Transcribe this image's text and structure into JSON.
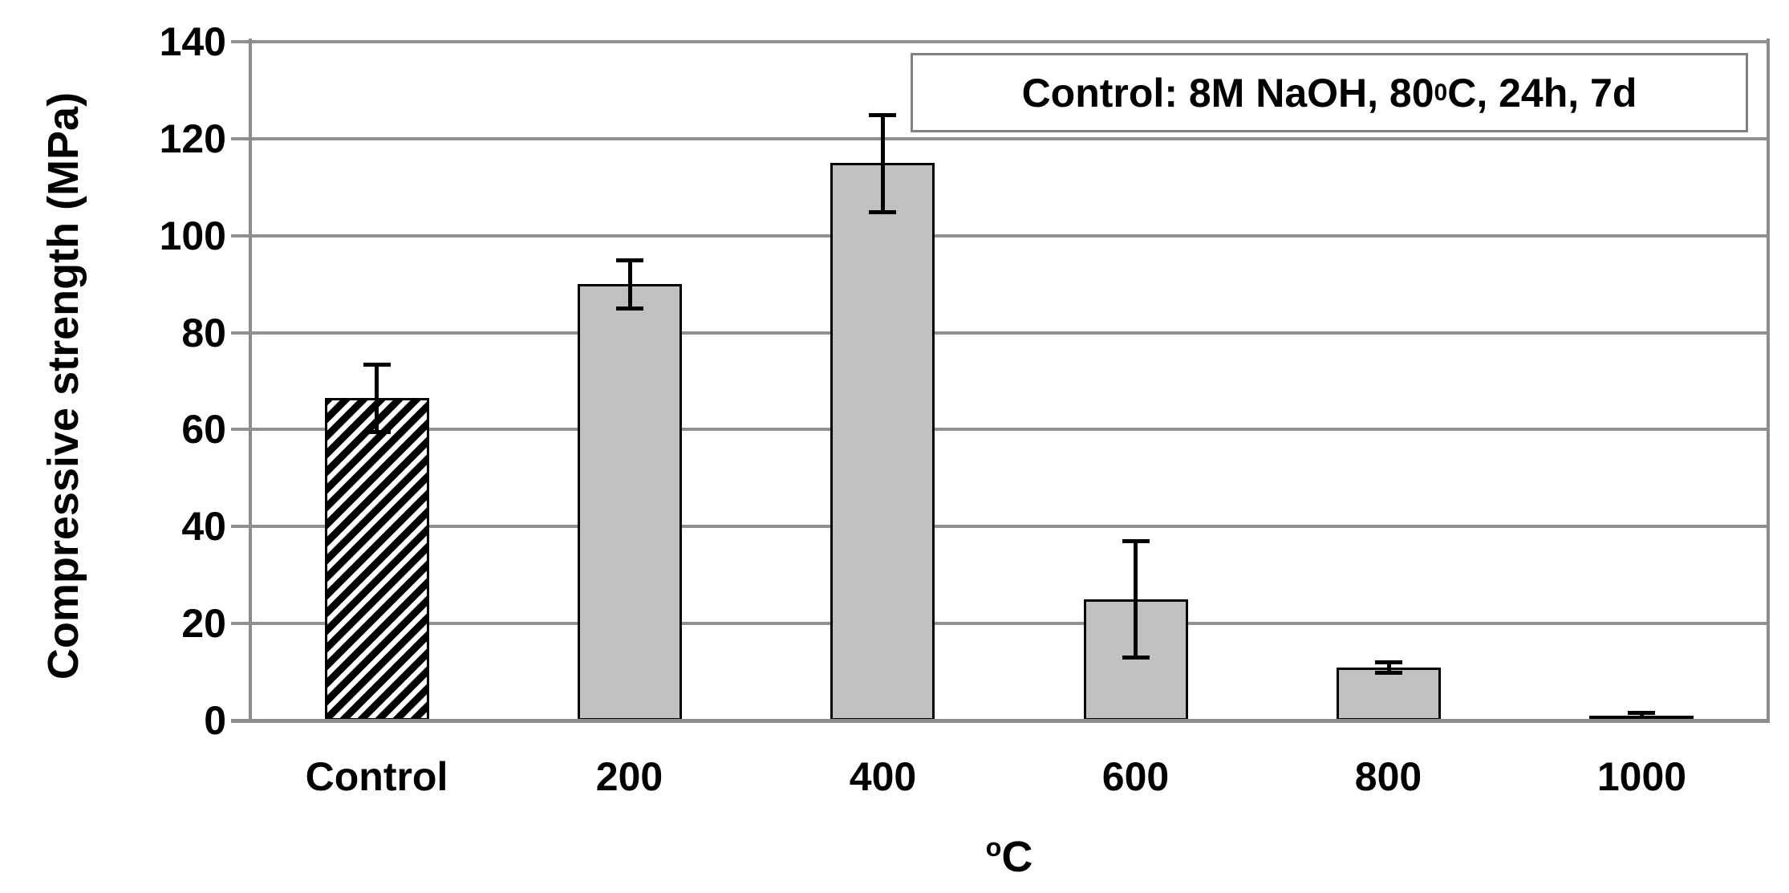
{
  "chart_data": {
    "type": "bar",
    "title": "",
    "categories": [
      "Control",
      "200",
      "400",
      "600",
      "800",
      "1000"
    ],
    "values": [
      66.5,
      90,
      115,
      25,
      11,
      1
    ],
    "error_bars": [
      7,
      5,
      10,
      12,
      1,
      0.7
    ],
    "bar_styles": [
      "diagonal-hatch",
      "solid",
      "solid",
      "solid",
      "solid",
      "solid"
    ],
    "ylabel": "Compressive strength (MPa)",
    "xlabel_sup": "o",
    "xlabel_main": "C",
    "ylim": [
      0,
      140
    ],
    "yticks": [
      0,
      20,
      40,
      60,
      80,
      100,
      120,
      140
    ],
    "grid": "horizontal gridlines on",
    "legend_position": "none",
    "annotation": {
      "prefix": "Control: 8M NaOH, 80 ",
      "sup": "0",
      "suffix": "C, 24h, 7d"
    }
  },
  "colors": {
    "background": "#ffffff",
    "bar_fill": "#c1c1c1",
    "bar_border": "#000000",
    "hatch_color": "#000000",
    "hatch_background": "#ffffff",
    "gridline": "#909090",
    "axis": "#8c8c8c",
    "error_bar": "#000000",
    "annotation_border": "#808080",
    "text": "#000000"
  }
}
